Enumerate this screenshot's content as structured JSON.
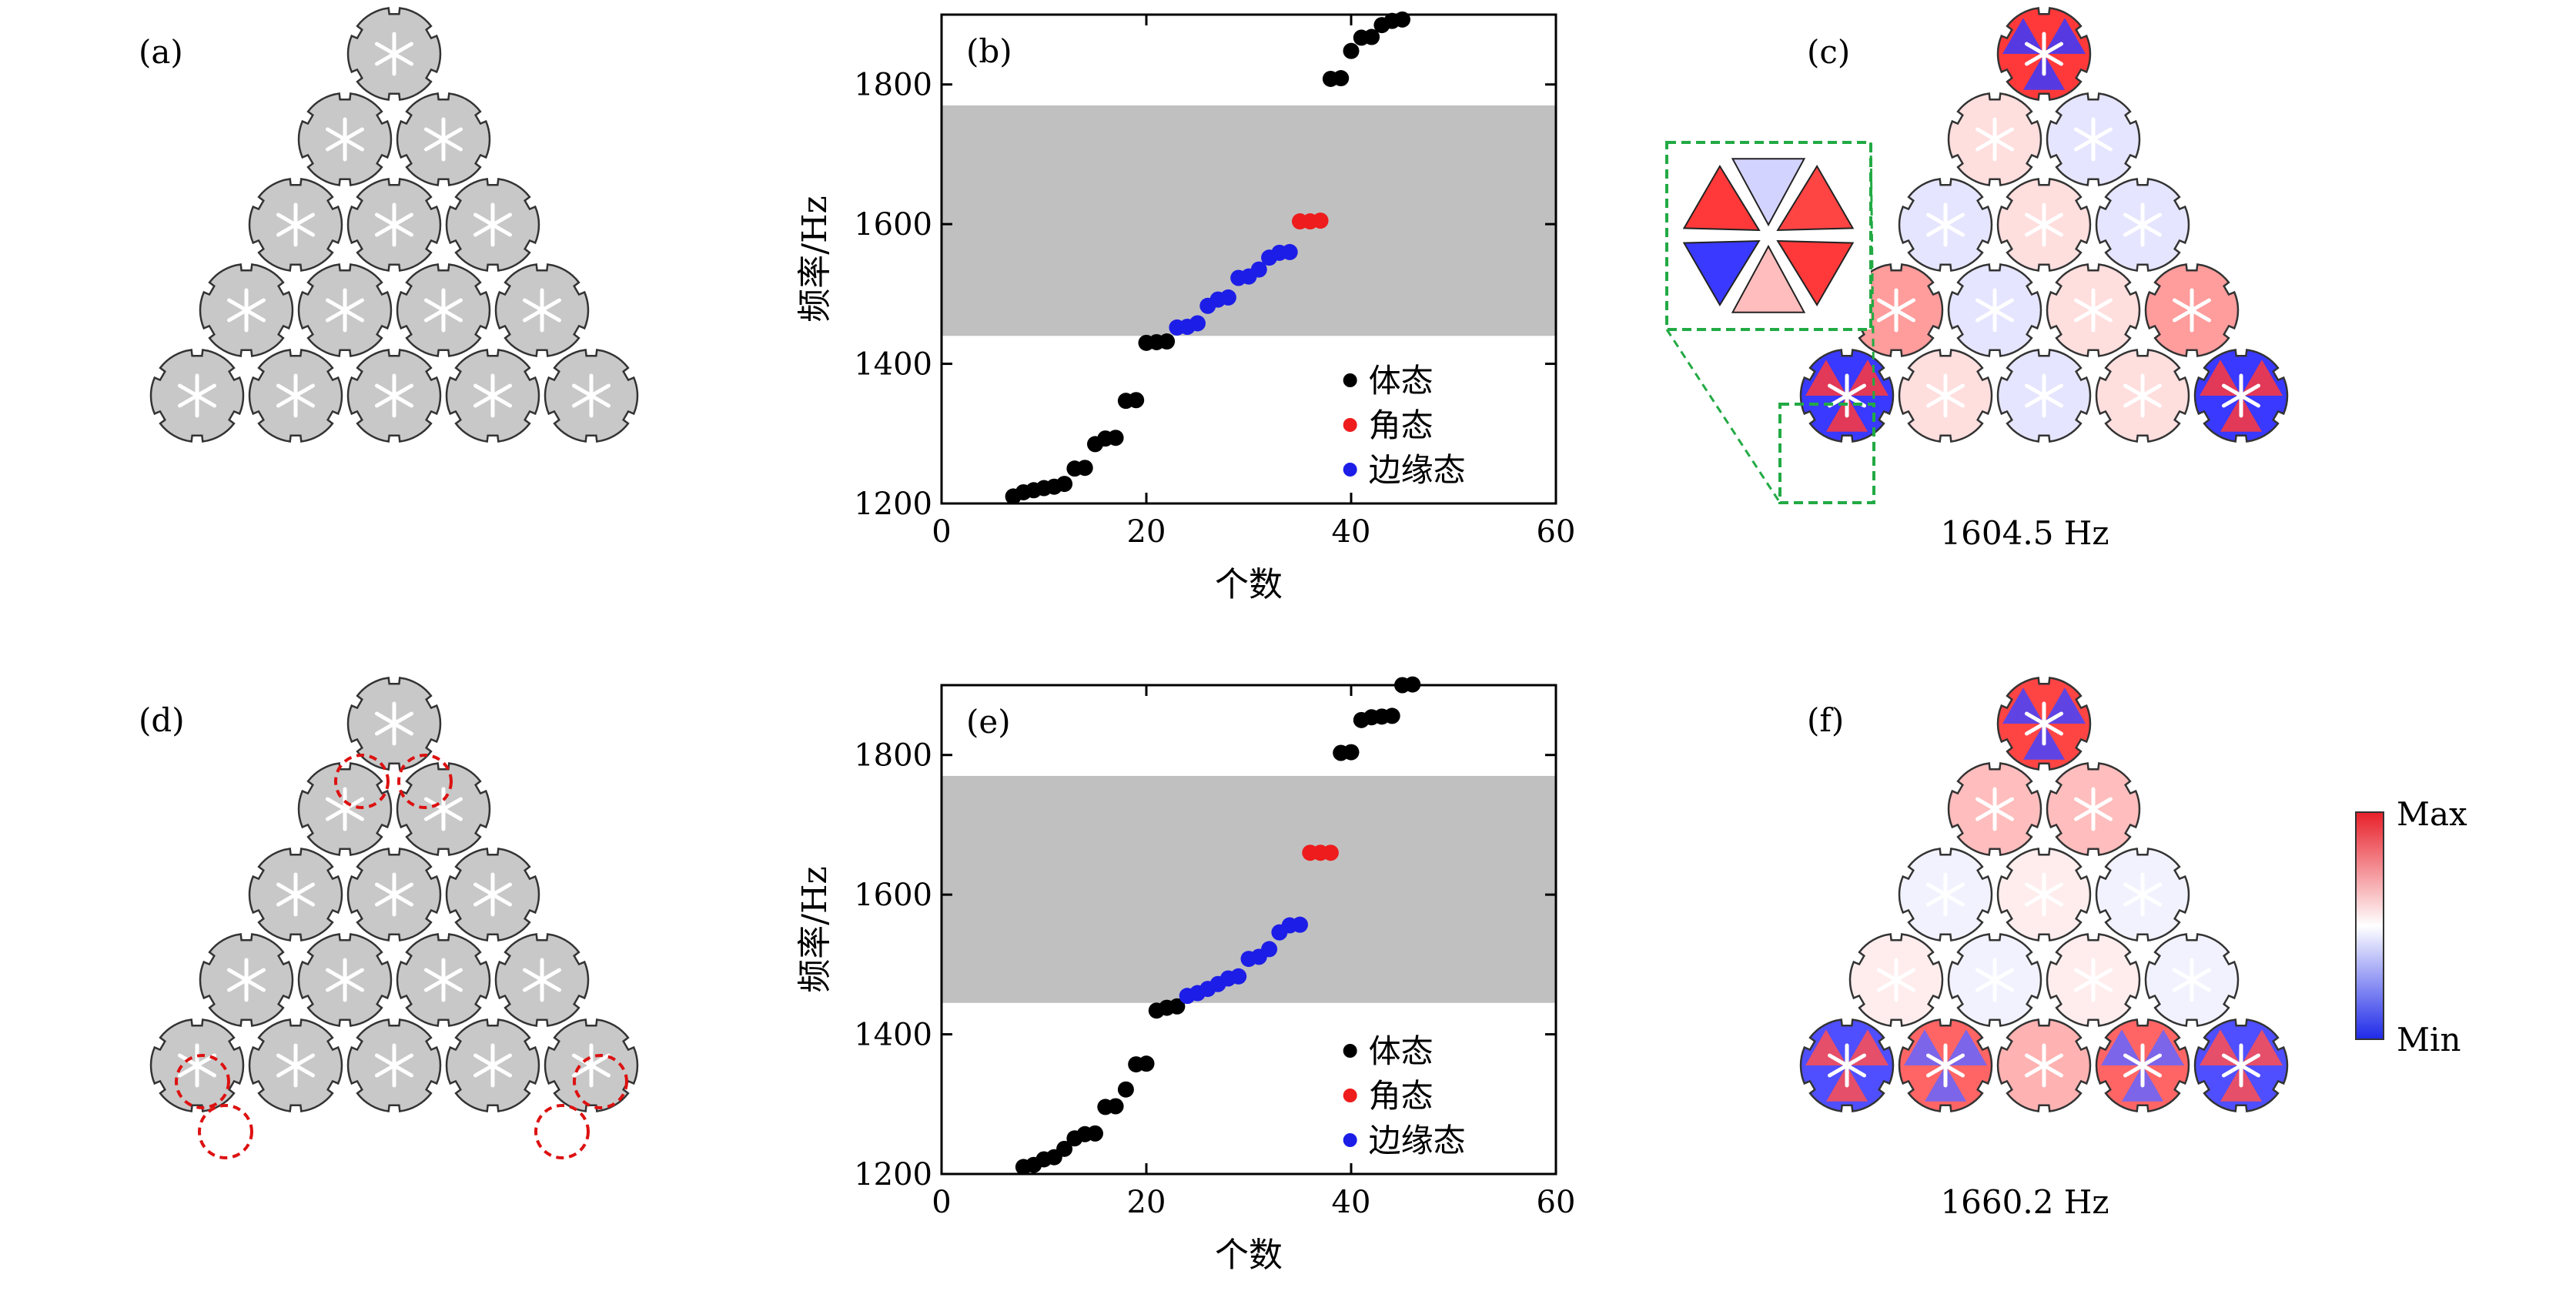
{
  "panel_labels": {
    "a": "(a)",
    "b": "(b)",
    "c": "(c)",
    "d": "(d)",
    "e": "(e)",
    "f": "(f)"
  },
  "freq_c": "1604.5 Hz",
  "freq_f": "1660.2 Hz",
  "colorbar": {
    "max_label": "Max",
    "min_label": "Min",
    "top_color": "#e8202a",
    "mid_color": "#ffffff",
    "bottom_color": "#1f2ae8"
  },
  "colors": {
    "bulk": "#000000",
    "corner": "#ee1c1c",
    "edge": "#1d1de8",
    "gap": "#c0c0c0",
    "structure": "#c8c8c8",
    "defect_circle": "#dd1111",
    "zoom_box": "#22aa44"
  },
  "chart_data": [
    {
      "id": "b",
      "type": "scatter",
      "title": "",
      "xlabel": "个数",
      "ylabel": "频率/Hz",
      "xlim": [
        0,
        60
      ],
      "ylim": [
        1200,
        1900
      ],
      "xticks": [
        0,
        20,
        40,
        60
      ],
      "yticks": [
        1200,
        1400,
        1600,
        1800
      ],
      "band_gap": [
        1440,
        1770
      ],
      "legend": [
        "体态",
        "角态",
        "边缘态"
      ],
      "legend_position": "lower-right",
      "series": [
        {
          "name": "体态",
          "color": "#000000",
          "x": [
            7,
            8,
            9,
            10,
            11,
            12,
            13,
            14,
            15,
            16,
            17,
            18,
            19,
            20,
            21,
            22,
            38,
            39,
            40,
            41,
            42,
            43,
            44,
            45
          ],
          "y": [
            1210,
            1216,
            1219,
            1222,
            1224,
            1228,
            1250,
            1251,
            1285,
            1293,
            1294,
            1347,
            1348,
            1430,
            1431,
            1432,
            1808,
            1809,
            1848,
            1867,
            1868,
            1885,
            1891,
            1893
          ]
        },
        {
          "name": "角态",
          "color": "#ee1c1c",
          "x": [
            35,
            36,
            37
          ],
          "y": [
            1604,
            1604,
            1605
          ]
        },
        {
          "name": "边缘态",
          "color": "#1d1de8",
          "x": [
            23,
            24,
            25,
            26,
            27,
            28,
            29,
            30,
            31,
            32,
            33,
            34
          ],
          "y": [
            1452,
            1453,
            1458,
            1483,
            1492,
            1495,
            1523,
            1525,
            1535,
            1552,
            1559,
            1560
          ]
        }
      ]
    },
    {
      "id": "e",
      "type": "scatter",
      "title": "",
      "xlabel": "个数",
      "ylabel": "频率/Hz",
      "xlim": [
        0,
        60
      ],
      "ylim": [
        1200,
        1900
      ],
      "xticks": [
        0,
        20,
        40,
        60
      ],
      "yticks": [
        1200,
        1400,
        1600,
        1800
      ],
      "band_gap": [
        1445,
        1770
      ],
      "legend": [
        "体态",
        "角态",
        "边缘态"
      ],
      "legend_position": "lower-right",
      "series": [
        {
          "name": "体态",
          "color": "#000000",
          "x": [
            8,
            9,
            10,
            11,
            12,
            13,
            14,
            15,
            16,
            17,
            18,
            19,
            20,
            21,
            22,
            23,
            39,
            40,
            41,
            42,
            43,
            44,
            45,
            46
          ],
          "y": [
            1210,
            1213,
            1221,
            1224,
            1236,
            1251,
            1257,
            1258,
            1296,
            1297,
            1321,
            1357,
            1358,
            1434,
            1438,
            1440,
            1803,
            1804,
            1850,
            1854,
            1855,
            1856,
            1900,
            1901
          ]
        },
        {
          "name": "角态",
          "color": "#ee1c1c",
          "x": [
            36,
            37,
            38
          ],
          "y": [
            1660,
            1660,
            1660
          ]
        },
        {
          "name": "边缘态",
          "color": "#1d1de8",
          "x": [
            24,
            25,
            26,
            27,
            28,
            29,
            30,
            31,
            32,
            33,
            34,
            35
          ],
          "y": [
            1455,
            1459,
            1465,
            1472,
            1480,
            1483,
            1508,
            1511,
            1522,
            1546,
            1556,
            1557
          ]
        }
      ]
    }
  ]
}
